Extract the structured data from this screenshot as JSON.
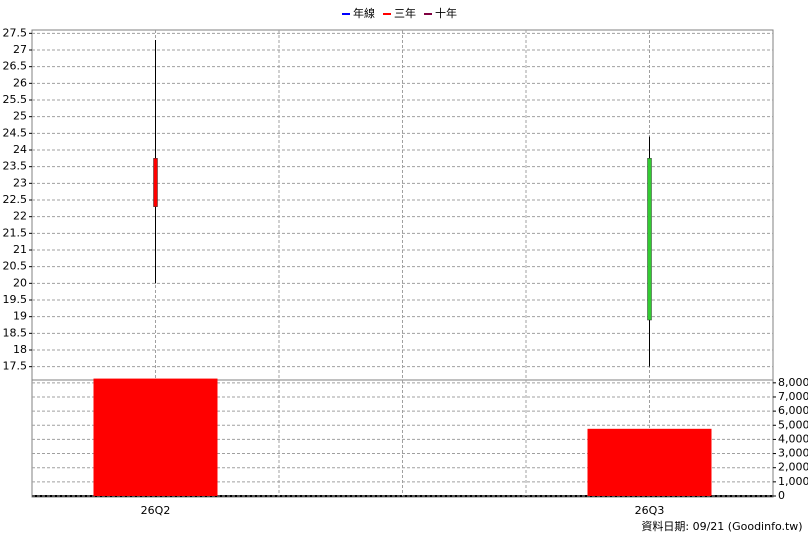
{
  "chart_data": {
    "type": "candlestick",
    "legend": [
      {
        "name": "年線",
        "color": "#0000ff"
      },
      {
        "name": "三年",
        "color": "#ff0000"
      },
      {
        "name": "十年",
        "color": "#800040"
      }
    ],
    "categories": [
      "26Q2",
      "26Q3"
    ],
    "open": [
      22.3,
      23.75
    ],
    "high": [
      27.3,
      24.4
    ],
    "low": [
      20,
      17.5
    ],
    "close": [
      23.75,
      18.9
    ],
    "volume": [
      8300,
      4750
    ],
    "up_color": "#ff0000",
    "down_color": "#33cc33",
    "volume_color": "#ff0000",
    "ylim": [
      17.1,
      27.6
    ],
    "yticks": [
      17.5,
      18,
      18.5,
      19,
      19.5,
      20,
      20.5,
      21,
      21.5,
      22,
      22.5,
      23,
      23.5,
      24,
      24.5,
      25,
      25.5,
      26,
      26.5,
      27,
      27.5
    ],
    "y2lim": [
      0,
      8200
    ],
    "y2ticks": [
      0,
      {
        "value": 1000,
        "label": "1,000"
      },
      {
        "value": 2000,
        "label": "2,000"
      },
      {
        "value": 3000,
        "label": "3,000"
      },
      {
        "value": 4000,
        "label": "4,000"
      },
      {
        "value": 5000,
        "label": "5,000"
      },
      {
        "value": 6000,
        "label": "6,000"
      },
      {
        "value": 7000,
        "label": "7,000"
      },
      {
        "value": 8000,
        "label": "8,000"
      }
    ],
    "grid": true,
    "footer": "資料日期: 09/21  (Goodinfo.tw)"
  }
}
